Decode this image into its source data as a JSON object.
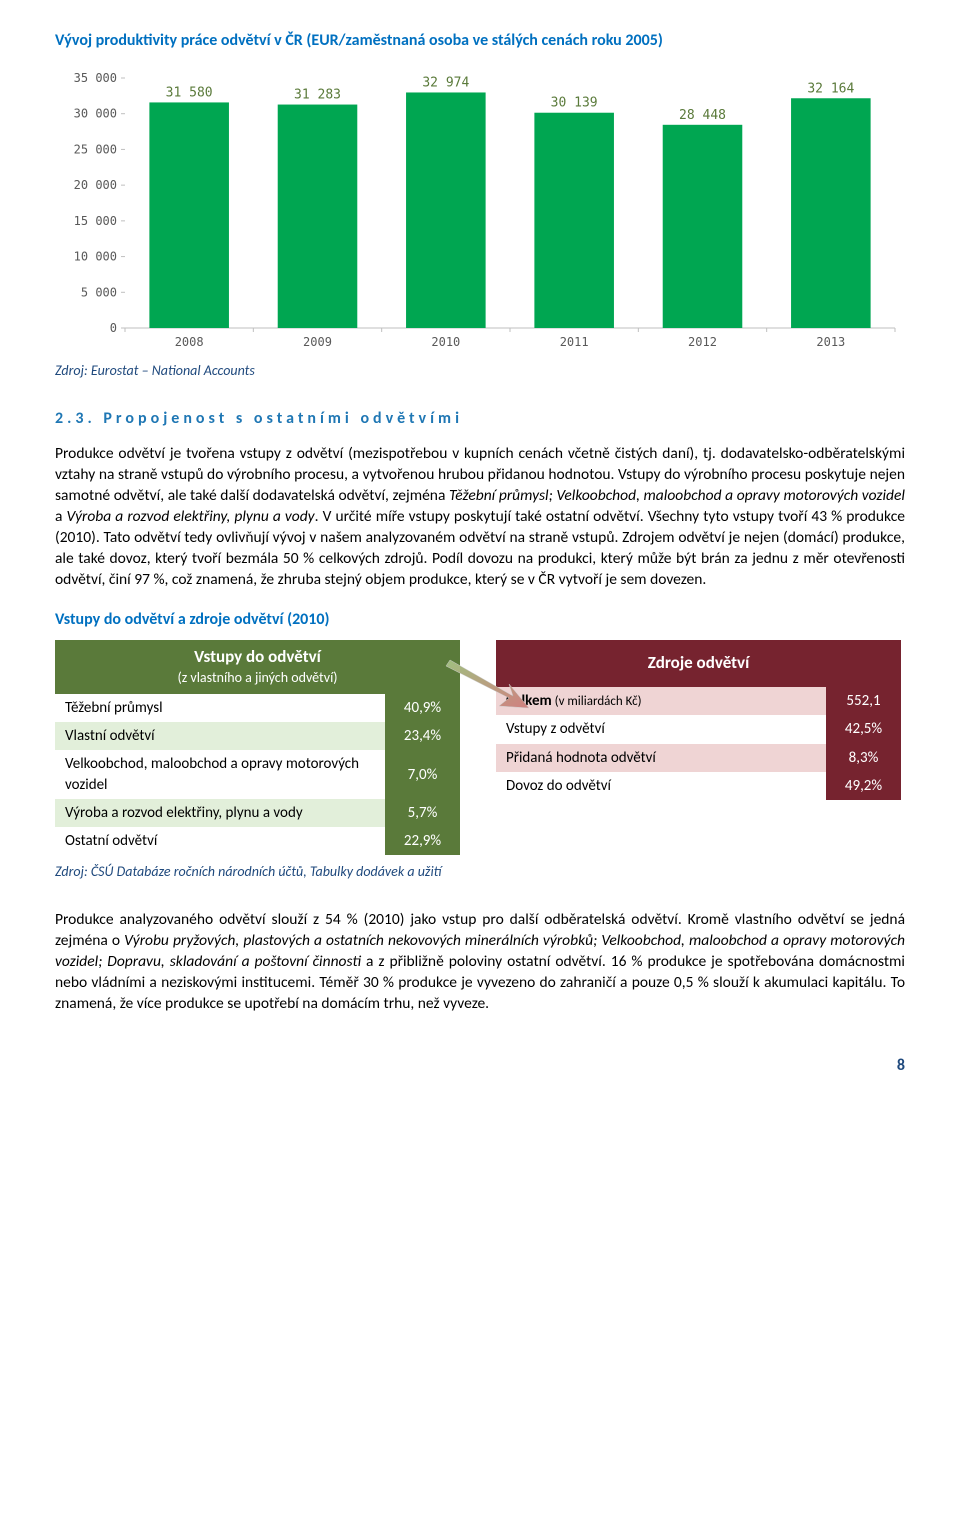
{
  "chart": {
    "title": "Vývoj produktivity práce odvětví v ČR (EUR/zaměstnaná osoba ve stálých cenách roku 2005)",
    "type": "bar",
    "categories": [
      "2008",
      "2009",
      "2010",
      "2011",
      "2012",
      "2013"
    ],
    "values": [
      31580,
      31283,
      32974,
      30139,
      28448,
      32164
    ],
    "value_labels": [
      "31 580",
      "31 283",
      "32 974",
      "30 139",
      "28 448",
      "32 164"
    ],
    "bar_color": "#00a651",
    "value_label_color": "#5a7a3a",
    "ylim": [
      0,
      35000
    ],
    "ytick_labels": [
      "0",
      "5 000",
      "10 000",
      "15 000",
      "20 000",
      "25 000",
      "30 000",
      "35 000"
    ],
    "ytick_values": [
      0,
      5000,
      10000,
      15000,
      20000,
      25000,
      30000,
      35000
    ],
    "axis_font": "Consolas, monospace",
    "axis_fontsize": 12,
    "tick_label_color": "#595959",
    "background_color": "#ffffff",
    "bar_width": 0.62
  },
  "source1": "Zdroj: Eurostat – National Accounts",
  "subhead_num": "2.3.",
  "subhead_text": "Propojenost s ostatními odvětvími",
  "para1_html": "Produkce odvětví je tvořena vstupy z odvětví (mezispotřebou v kupních cenách včetně čistých daní), tj. dodavatelsko-odběratelskými vztahy na straně vstupů do výrobního procesu, a vytvořenou hrubou přidanou hodnotou. Vstupy do výrobního procesu poskytuje nejen samotné odvětví, ale také další dodavatelská odvětví, zejména <em>Těžební průmysl; Velkoobchod, maloobchod a opravy motorových vozidel</em> a <em>Výroba a rozvod elektřiny, plynu a vody</em>. V určité míře vstupy poskytují také ostatní odvětví. Všechny tyto vstupy tvoří 43 % produkce (2010). Tato odvětví tedy ovlivňují vývoj v našem analyzovaném odvětví na straně vstupů. Zdrojem odvětví je nejen (domácí) produkce, ale také dovoz, který tvoří bezmála 50 % celkových zdrojů. Podíl dovozu na produkci, který může být brán za jednu z měr otevřenosti odvětví, činí 97 %, což znamená, že zhruba stejný objem produkce, který se v ČR vytvoří je sem dovezen.",
  "tables_title": "Vstupy do odvětví a zdroje odvětví (2010)",
  "left_table": {
    "header_main": "Vstupy do odvětví",
    "header_sub": "(z vlastního a jiných odvětví)",
    "header_bg": "#5a7a3a",
    "alt_bg": "#e2efda",
    "rows": [
      {
        "label": "Těžební průmysl",
        "value": "40,9%"
      },
      {
        "label": "Vlastní odvětví",
        "value": "23,4%"
      },
      {
        "label": "Velkoobchod, maloobchod a opravy motorových vozidel",
        "value": "7,0%"
      },
      {
        "label": "Výroba a rozvod elektřiny, plynu a vody",
        "value": "5,7%"
      },
      {
        "label": "Ostatní odvětví",
        "value": "22,9%"
      }
    ]
  },
  "right_table": {
    "header_main": "Zdroje odvětví",
    "header_bg": "#76232f",
    "alt_bg": "#efd4d4",
    "rows": [
      {
        "label": "Celkem",
        "sub": " (v miliardách Kč)",
        "value": "552,1",
        "bold": true
      },
      {
        "label": "Vstupy z odvětví",
        "value": "42,5%"
      },
      {
        "label": "Přidaná hodnota odvětví",
        "value": "8,3%"
      },
      {
        "label": "Dovoz do odvětví",
        "value": "49,2%"
      }
    ]
  },
  "source2": "Zdroj: ČSÚ Databáze ročních národních účtů, Tabulky dodávek a užití",
  "para2_html": "Produkce analyzovaného odvětví slouží z 54 % (2010) jako vstup pro další odběratelská odvětví. Kromě vlastního odvětví se jedná zejména o <em>Výrobu pryžových, plastových a ostatních nekovových minerálních výrobků; Velkoobchod, maloobchod a opravy motorových vozidel; Dopravu, skladování a poštovní činnosti</em> a z přibližně poloviny ostatní odvětví. 16 % produkce je spotřebována domácnostmi nebo vládními a neziskovými institucemi. Téměř 30 % produkce je vyvezeno do zahraničí a pouze 0,5 % slouží k akumulaci kapitálu. To znamená, že více produkce se upotřebí na domácím trhu, než vyveze.",
  "page_num": "8"
}
